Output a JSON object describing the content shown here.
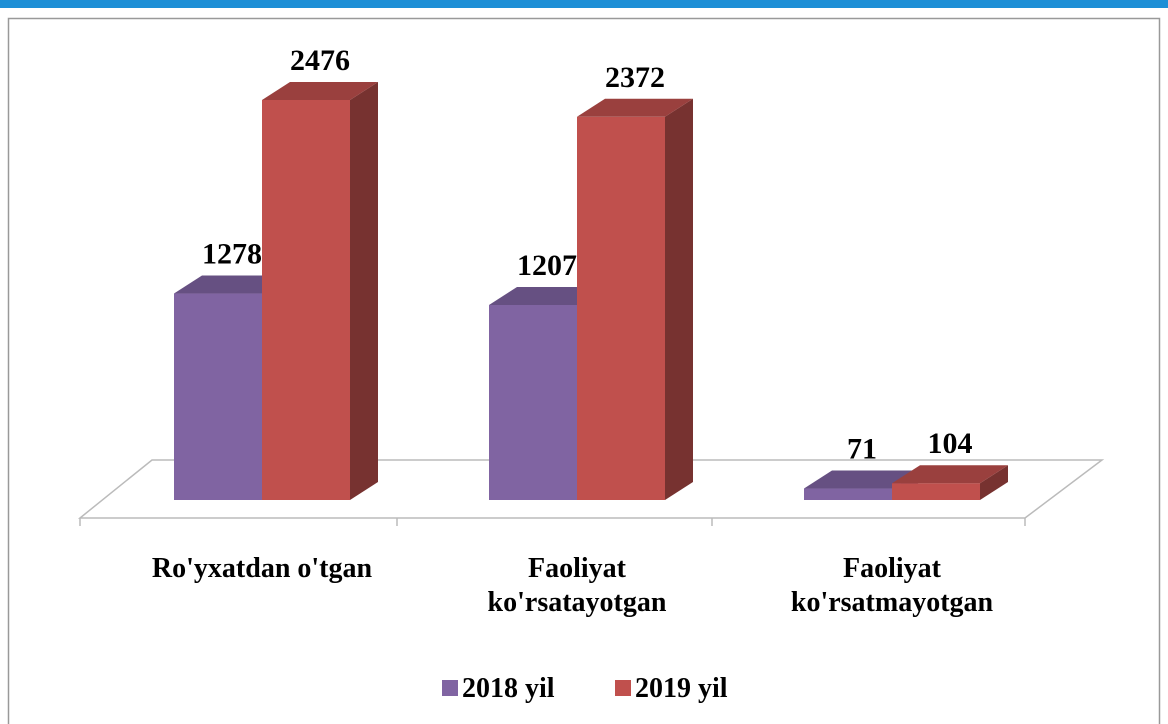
{
  "chart_data": {
    "type": "bar3d",
    "categories": [
      "Ro'yxatdan o'tgan",
      "Faoliyat\nko'rsatayotgan",
      "Faoliyat\nko'rsatmayotgan"
    ],
    "series": [
      {
        "name": "2018 yil",
        "color": "#8064a2",
        "values": [
          1278,
          1207,
          71
        ]
      },
      {
        "name": "2019 yil",
        "color": "#c0504d",
        "values": [
          2476,
          2372,
          104
        ]
      }
    ],
    "legend": "bottom"
  }
}
